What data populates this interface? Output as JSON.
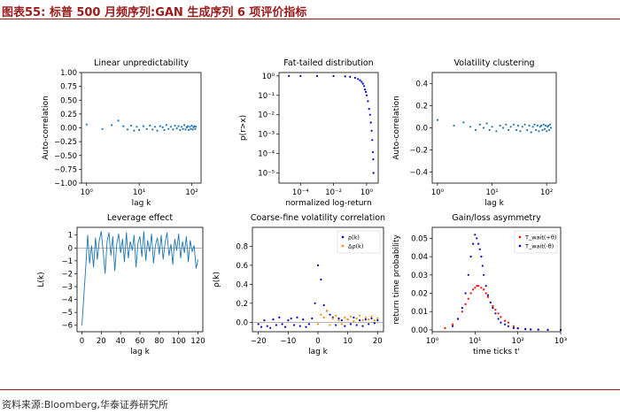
{
  "header": {
    "title": "图表55:  标普 500 月频序列:GAN 生成序列 6 项评价指标"
  },
  "footer": {
    "source": "资料来源:Bloomberg,华泰证券研究所"
  },
  "chart_data": [
    {
      "type": "scatter",
      "title": "Linear unpredictability",
      "xlabel": "lag k",
      "ylabel": "Auto-correlation",
      "xscale": "log",
      "xlim": [
        0.8,
        150
      ],
      "ylim": [
        -1.0,
        1.0
      ],
      "xticks": [
        1,
        10,
        100
      ],
      "xticklabels": [
        "10⁰",
        "10¹",
        "10²"
      ],
      "yticks": [
        -1.0,
        -0.75,
        -0.5,
        -0.25,
        0.0,
        0.25,
        0.5,
        0.75,
        1.0
      ],
      "yticklabels": [
        "−1.00",
        "−0.75",
        "−0.50",
        "−0.25",
        "0.00",
        "0.25",
        "0.50",
        "0.75",
        "1.00"
      ],
      "color": "#1f77b4",
      "x": [
        1,
        2,
        3,
        4,
        5,
        6,
        7,
        8,
        9,
        10,
        12,
        14,
        16,
        18,
        20,
        22,
        25,
        28,
        30,
        33,
        36,
        40,
        44,
        48,
        52,
        56,
        60,
        64,
        68,
        72,
        76,
        80,
        84,
        88,
        92,
        96,
        100,
        104,
        108,
        112,
        116,
        120
      ],
      "y": [
        0.06,
        -0.02,
        0.05,
        0.13,
        0.03,
        -0.03,
        0.04,
        -0.05,
        0.02,
        -0.04,
        0.03,
        -0.02,
        0.04,
        -0.03,
        0.02,
        -0.05,
        0.03,
        0.01,
        -0.04,
        0.05,
        -0.02,
        0.02,
        -0.03,
        0.04,
        -0.01,
        0.03,
        -0.04,
        0.02,
        -0.02,
        0.05,
        -0.03,
        0.01,
        0.03,
        -0.04,
        0.02,
        -0.02,
        0.04,
        -0.03,
        0.01,
        0.03,
        -0.02,
        0.02
      ]
    },
    {
      "type": "scatter",
      "title": "Fat-tailed distribution",
      "xlabel": "normalized log-return",
      "ylabel": "p(r>x)",
      "xscale": "log",
      "yscale": "log",
      "xlim": [
        5e-06,
        5
      ],
      "ylim": [
        3e-06,
        1.5
      ],
      "xticks": [
        0.0001,
        0.01,
        1
      ],
      "xticklabels": [
        "10⁻⁴",
        "10⁻²",
        "10⁰"
      ],
      "yticks": [
        1e-05,
        0.0001,
        0.001,
        0.01,
        0.1,
        1
      ],
      "yticklabels": [
        "10⁻⁵",
        "10⁻⁴",
        "10⁻³",
        "10⁻²",
        "10⁻¹",
        "10⁰"
      ],
      "color": "#0000cc",
      "x": [
        2e-05,
        0.0001,
        0.001,
        0.01,
        0.05,
        0.1,
        0.2,
        0.3,
        0.4,
        0.5,
        0.6,
        0.7,
        0.8,
        0.9,
        1.0,
        1.2,
        1.4,
        1.6,
        1.8,
        2.0,
        2.2,
        2.4,
        2.5,
        2.6
      ],
      "y": [
        1.0,
        1.0,
        0.999,
        0.99,
        0.95,
        0.9,
        0.8,
        0.7,
        0.6,
        0.5,
        0.4,
        0.3,
        0.2,
        0.15,
        0.1,
        0.05,
        0.02,
        0.01,
        0.004,
        0.0015,
        0.0005,
        0.00012,
        5e-05,
        1e-05
      ]
    },
    {
      "type": "scatter",
      "title": "Volatility clustering",
      "xlabel": "lag k",
      "ylabel": "Auto-correlation",
      "xscale": "log",
      "xlim": [
        0.8,
        150
      ],
      "ylim": [
        -0.5,
        0.5
      ],
      "xticks": [
        1,
        10,
        100
      ],
      "xticklabels": [
        "10⁰",
        "10¹",
        "10²"
      ],
      "yticks": [
        -0.4,
        -0.2,
        0.0,
        0.2,
        0.4
      ],
      "yticklabels": [
        "−0.4",
        "−0.2",
        "0.0",
        "0.2",
        "0.4"
      ],
      "color": "#1f77b4",
      "x": [
        1,
        2,
        3,
        4,
        5,
        6,
        7,
        8,
        9,
        10,
        12,
        14,
        16,
        18,
        20,
        22,
        25,
        28,
        30,
        33,
        36,
        40,
        44,
        48,
        52,
        56,
        60,
        64,
        68,
        72,
        76,
        80,
        84,
        88,
        92,
        96,
        100,
        104,
        108,
        112,
        116,
        120
      ],
      "y": [
        0.07,
        0.02,
        0.05,
        0.01,
        -0.02,
        0.03,
        0.0,
        0.04,
        -0.02,
        0.01,
        -0.03,
        0.02,
        0.0,
        0.03,
        -0.02,
        0.01,
        0.03,
        -0.02,
        0.02,
        -0.03,
        0.01,
        0.03,
        -0.02,
        0.02,
        -0.04,
        0.01,
        0.03,
        -0.02,
        0.02,
        -0.03,
        0.01,
        0.02,
        -0.02,
        0.03,
        -0.01,
        0.02,
        -0.03,
        0.01,
        0.02,
        -0.02,
        0.03,
        0.0
      ]
    },
    {
      "type": "line",
      "title": "Leverage effect",
      "xlabel": "lag k",
      "ylabel": "L(k)",
      "xlim": [
        -5,
        125
      ],
      "ylim": [
        -6.5,
        1.6
      ],
      "xticks": [
        0,
        20,
        40,
        60,
        80,
        100,
        120
      ],
      "xticklabels": [
        "0",
        "20",
        "40",
        "60",
        "80",
        "100",
        "120"
      ],
      "yticks": [
        -6,
        -5,
        -4,
        -3,
        -2,
        -1,
        0,
        1
      ],
      "yticklabels": [
        "−6",
        "−5",
        "−4",
        "−3",
        "−2",
        "−1",
        "0",
        "1"
      ],
      "color": "#1f77b4",
      "zero_line": true,
      "x": [
        0,
        2,
        4,
        6,
        8,
        10,
        12,
        14,
        16,
        18,
        20,
        22,
        24,
        26,
        28,
        30,
        32,
        34,
        36,
        38,
        40,
        42,
        44,
        46,
        48,
        50,
        52,
        54,
        56,
        58,
        60,
        62,
        64,
        66,
        68,
        70,
        72,
        74,
        76,
        78,
        80,
        82,
        84,
        86,
        88,
        90,
        92,
        94,
        96,
        98,
        100,
        102,
        104,
        106,
        108,
        110,
        112,
        114,
        116,
        118,
        120
      ],
      "y": [
        -6.0,
        -3.8,
        -1.5,
        1.0,
        -1.2,
        0.2,
        -1.5,
        0.8,
        -0.9,
        0.6,
        1.3,
        -0.3,
        -2.0,
        0.5,
        1.2,
        -0.6,
        0.9,
        -1.8,
        0.3,
        1.1,
        -0.4,
        0.7,
        -1.1,
        1.2,
        -0.8,
        0.5,
        -0.2,
        1.0,
        -1.5,
        0.4,
        0.9,
        -0.7,
        1.3,
        -1.0,
        0.6,
        -0.3,
        1.1,
        -1.2,
        0.2,
        0.8,
        -0.5,
        1.0,
        -0.9,
        0.4,
        1.2,
        -0.6,
        0.3,
        -1.3,
        0.7,
        -0.2,
        1.1,
        -0.8,
        0.5,
        -0.4,
        0.9,
        -1.1,
        0.6,
        -0.3,
        0.2,
        -1.6,
        -0.9
      ]
    },
    {
      "type": "scatter",
      "title": "Coarse-fine volatility correlation",
      "xlabel": "lag k",
      "ylabel": "ρ(k)",
      "xlim": [
        -22,
        22
      ],
      "ylim": [
        -0.1,
        1.0
      ],
      "xticks": [
        -20,
        -10,
        0,
        10,
        20
      ],
      "xticklabels": [
        "−20",
        "−10",
        "0",
        "10",
        "20"
      ],
      "yticks": [
        0.0,
        0.2,
        0.4,
        0.6,
        0.8
      ],
      "yticklabels": [
        "0.0",
        "0.2",
        "0.4",
        "0.6",
        "0.8"
      ],
      "legend_position": "top-right",
      "zero_line": true,
      "series": [
        {
          "name": "ρ(k)",
          "color": "#0000cc",
          "x": [
            -20,
            -19,
            -18,
            -17,
            -16,
            -15,
            -14,
            -13,
            -12,
            -11,
            -10,
            -9,
            -8,
            -7,
            -6,
            -5,
            -4,
            -3,
            -2,
            -1,
            0,
            1,
            2,
            3,
            4,
            5,
            6,
            7,
            8,
            9,
            10,
            11,
            12,
            13,
            14,
            15,
            16,
            17,
            18,
            19,
            20
          ],
          "y": [
            -0.02,
            -0.05,
            0.02,
            -0.04,
            -0.06,
            0.03,
            -0.03,
            0.05,
            -0.02,
            -0.05,
            0.02,
            0.04,
            -0.03,
            0.05,
            -0.04,
            0.03,
            -0.05,
            -0.02,
            0.04,
            0.2,
            0.6,
            0.45,
            0.18,
            0.12,
            0.08,
            0.05,
            -0.03,
            0.04,
            0.02,
            -0.04,
            0.03,
            -0.02,
            0.05,
            -0.03,
            0.02,
            -0.04,
            0.03,
            -0.02,
            0.04,
            -0.01,
            0.02
          ]
        },
        {
          "name": "Δρ(k)",
          "color": "#ff8c00",
          "x": [
            0,
            1,
            2,
            3,
            4,
            5,
            6,
            7,
            8,
            9,
            10,
            11,
            12,
            13,
            14,
            15,
            16,
            17,
            18,
            19,
            20
          ],
          "y": [
            -0.02,
            0.08,
            0.05,
            0.12,
            -0.03,
            0.04,
            0.07,
            0.02,
            -0.02,
            0.05,
            0.03,
            0.06,
            0.01,
            0.04,
            0.07,
            0.02,
            0.05,
            0.03,
            0.06,
            0.02,
            0.04
          ]
        }
      ]
    },
    {
      "type": "scatter",
      "title": "Gain/loss asymmetry",
      "xlabel": "time ticks t'",
      "ylabel": "return time probability",
      "xscale": "log",
      "xlim": [
        1,
        1000
      ],
      "ylim": [
        -0.001,
        0.056
      ],
      "xticks": [
        1,
        10,
        100,
        1000
      ],
      "xticklabels": [
        "10⁰",
        "10¹",
        "10²",
        "10³"
      ],
      "yticks": [
        0.0,
        0.01,
        0.02,
        0.03,
        0.04,
        0.05
      ],
      "yticklabels": [
        "0.00",
        "0.01",
        "0.02",
        "0.03",
        "0.04",
        "0.05"
      ],
      "legend_position": "top-right",
      "series": [
        {
          "name": "T_wait(+θ)",
          "color": "#ff0000",
          "x": [
            2,
            3,
            4,
            5,
            6,
            7,
            8,
            9,
            10,
            11,
            12,
            14,
            16,
            18,
            20,
            23,
            26,
            30,
            35,
            40,
            50,
            60,
            80,
            100,
            150,
            200,
            300,
            500,
            1000
          ],
          "y": [
            0.001,
            0.003,
            0.006,
            0.01,
            0.014,
            0.017,
            0.02,
            0.022,
            0.023,
            0.024,
            0.024,
            0.023,
            0.022,
            0.02,
            0.018,
            0.015,
            0.013,
            0.011,
            0.009,
            0.007,
            0.005,
            0.004,
            0.002,
            0.001,
            0.0006,
            0.0003,
            0.0002,
            0.0001,
            0.0
          ]
        },
        {
          "name": "T_wait(-θ)",
          "color": "#0000cc",
          "x": [
            3,
            4,
            5,
            6,
            7,
            8,
            9,
            10,
            11,
            12,
            13,
            14,
            15,
            16,
            18,
            20,
            23,
            26,
            30,
            35,
            40,
            50,
            60,
            80,
            100,
            150,
            200,
            300,
            500,
            1000
          ],
          "y": [
            0.002,
            0.006,
            0.012,
            0.02,
            0.03,
            0.04,
            0.047,
            0.052,
            0.05,
            0.047,
            0.044,
            0.04,
            0.035,
            0.03,
            0.024,
            0.019,
            0.015,
            0.012,
            0.009,
            0.006,
            0.004,
            0.003,
            0.002,
            0.001,
            0.0008,
            0.0004,
            0.0002,
            0.0001,
            0.0,
            0.0
          ]
        }
      ]
    }
  ]
}
